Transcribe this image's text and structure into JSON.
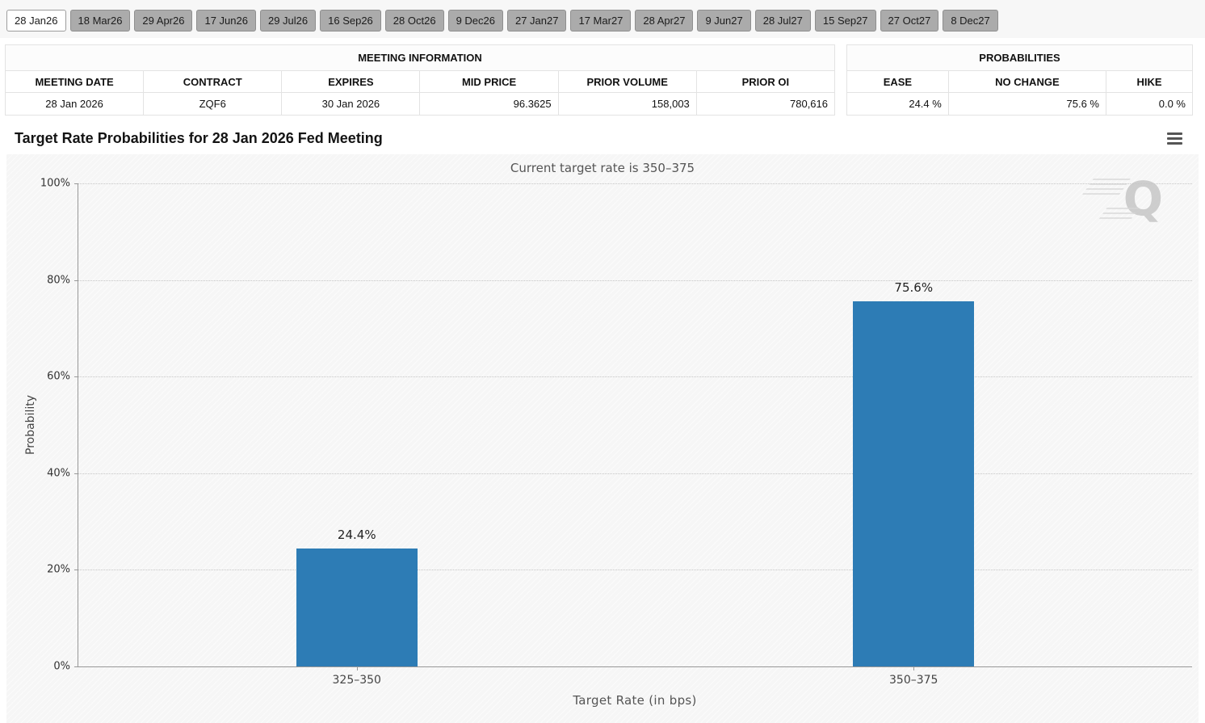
{
  "tabs": {
    "items": [
      {
        "label": "28 Jan26",
        "active": true
      },
      {
        "label": "18 Mar26",
        "active": false
      },
      {
        "label": "29 Apr26",
        "active": false
      },
      {
        "label": "17 Jun26",
        "active": false
      },
      {
        "label": "29 Jul26",
        "active": false
      },
      {
        "label": "16 Sep26",
        "active": false
      },
      {
        "label": "28 Oct26",
        "active": false
      },
      {
        "label": "9 Dec26",
        "active": false
      },
      {
        "label": "27 Jan27",
        "active": false
      },
      {
        "label": "17 Mar27",
        "active": false
      },
      {
        "label": "28 Apr27",
        "active": false
      },
      {
        "label": "9 Jun27",
        "active": false
      },
      {
        "label": "28 Jul27",
        "active": false
      },
      {
        "label": "15 Sep27",
        "active": false
      },
      {
        "label": "27 Oct27",
        "active": false
      },
      {
        "label": "8 Dec27",
        "active": false
      }
    ]
  },
  "meeting_info": {
    "title": "MEETING INFORMATION",
    "columns": [
      "MEETING DATE",
      "CONTRACT",
      "EXPIRES",
      "MID PRICE",
      "PRIOR VOLUME",
      "PRIOR OI"
    ],
    "row": [
      "28 Jan 2026",
      "ZQF6",
      "30 Jan 2026",
      "96.3625",
      "158,003",
      "780,616"
    ]
  },
  "probabilities": {
    "title": "PROBABILITIES",
    "columns": [
      "EASE",
      "NO CHANGE",
      "HIKE"
    ],
    "row": [
      "24.4 %",
      "75.6 %",
      "0.0 %"
    ]
  },
  "chart_data": {
    "type": "bar",
    "title": "Target Rate Probabilities for 28 Jan 2026 Fed Meeting",
    "subtitle": "Current target rate is 350–375",
    "categories": [
      "325–350",
      "350–375"
    ],
    "values": [
      24.4,
      75.6
    ],
    "data_labels": [
      "24.4%",
      "75.6%"
    ],
    "xlabel": "Target Rate (in bps)",
    "ylabel": "Probability",
    "ylim": [
      0,
      100
    ],
    "yticks": [
      0,
      20,
      40,
      60,
      80,
      100
    ],
    "ytick_labels": [
      "0%",
      "20%",
      "40%",
      "60%",
      "80%",
      "100%"
    ],
    "bar_color": "#2d7cb5",
    "grid": "horizontal-dotted",
    "legend": "none",
    "watermark": "Q"
  }
}
